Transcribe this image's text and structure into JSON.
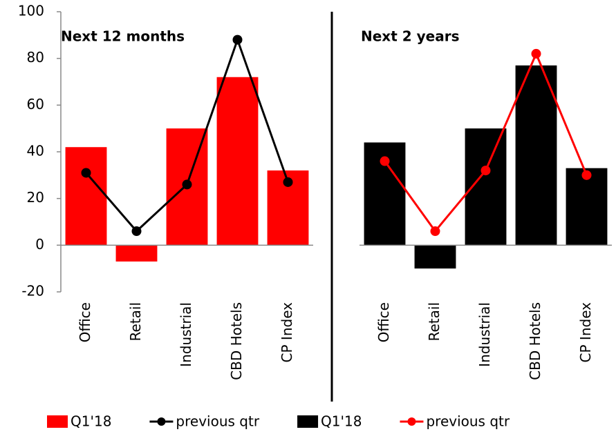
{
  "chart_data": {
    "type": "combo",
    "categories": [
      "Office",
      "Retail",
      "Industrial",
      "CBD Hotels",
      "CP Index"
    ],
    "ylim": [
      -20,
      100
    ],
    "yticks": [
      -20,
      0,
      20,
      40,
      60,
      80,
      100
    ],
    "panels": [
      {
        "title": "Next 12 months",
        "series": [
          {
            "name": "Q1'18",
            "type": "bar",
            "color": "#ff0000",
            "values": [
              42,
              -7,
              50,
              72,
              32
            ]
          },
          {
            "name": "previous qtr",
            "type": "line",
            "color": "#000000",
            "values": [
              31,
              6,
              26,
              88,
              27
            ]
          }
        ]
      },
      {
        "title": "Next 2 years",
        "series": [
          {
            "name": "Q1'18",
            "type": "bar",
            "color": "#000000",
            "values": [
              44,
              -10,
              50,
              77,
              33
            ]
          },
          {
            "name": "previous qtr",
            "type": "line",
            "color": "#ff0000",
            "values": [
              36,
              6,
              32,
              82,
              30
            ]
          }
        ]
      }
    ]
  }
}
